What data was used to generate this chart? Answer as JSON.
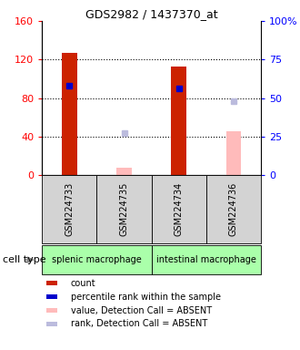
{
  "title": "GDS2982 / 1437370_at",
  "samples": [
    "GSM224733",
    "GSM224735",
    "GSM224734",
    "GSM224736"
  ],
  "count_values": [
    127,
    null,
    113,
    null
  ],
  "percentile_values": [
    58,
    null,
    56,
    null
  ],
  "absent_count_values": [
    null,
    8,
    null,
    45
  ],
  "absent_rank_values": [
    null,
    27,
    null,
    48
  ],
  "ylim_left": [
    0,
    160
  ],
  "ylim_right": [
    0,
    100
  ],
  "yticks_left": [
    0,
    40,
    80,
    120,
    160
  ],
  "yticks_right": [
    0,
    25,
    50,
    75,
    100
  ],
  "ytick_labels_right": [
    "0",
    "25",
    "50",
    "75",
    "100%"
  ],
  "color_count": "#cc2200",
  "color_percentile": "#0000cc",
  "color_absent_count": "#ffbbbb",
  "color_absent_rank": "#bbbbdd",
  "bar_width": 0.28,
  "cell_type_bg": "#aaffaa",
  "sample_bg": "#d3d3d3",
  "cell_type_groups": [
    {
      "label": "splenic macrophage",
      "cols": [
        0,
        1
      ]
    },
    {
      "label": "intestinal macrophage",
      "cols": [
        2,
        3
      ]
    }
  ],
  "legend_items": [
    {
      "color": "#cc2200",
      "label": "count"
    },
    {
      "color": "#0000cc",
      "label": "percentile rank within the sample"
    },
    {
      "color": "#ffbbbb",
      "label": "value, Detection Call = ABSENT"
    },
    {
      "color": "#bbbbdd",
      "label": "rank, Detection Call = ABSENT"
    }
  ],
  "fig_width": 3.3,
  "fig_height": 3.84,
  "dpi": 100
}
